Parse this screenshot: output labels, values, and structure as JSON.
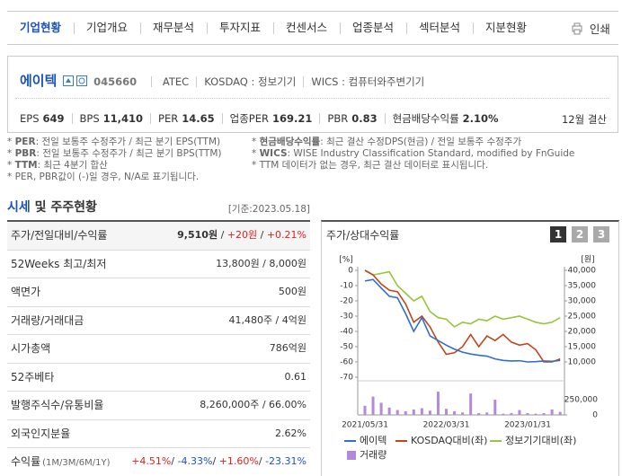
{
  "tabs": [
    "기업현황",
    "기업개요",
    "재무분석",
    "투자지표",
    "컨센서스",
    "업종분석",
    "섹터분석",
    "지분현황"
  ],
  "print": "인쇄",
  "company": {
    "name": "에이텍",
    "code": "045660",
    "eng": "ATEC",
    "market": "KOSDAQ : 정보기기",
    "wics": "WICS : 컴퓨터와주변기기",
    "metrics": [
      {
        "label": "EPS",
        "value": "649"
      },
      {
        "label": "BPS",
        "value": "11,410"
      },
      {
        "label": "PER",
        "value": "14.65"
      },
      {
        "label": "업종PER",
        "value": "169.21"
      },
      {
        "label": "PBR",
        "value": "0.83"
      },
      {
        "label": "현금배당수익률",
        "value": "2.10%"
      }
    ],
    "settle": "12월 결산"
  },
  "notes_left": [
    [
      {
        "t": "* "
      },
      {
        "t": "PER",
        "b": true
      },
      {
        "t": ": 전일 보통주 수정주가 / 최근 분기 EPS(TTM)"
      }
    ],
    [
      {
        "t": "* "
      },
      {
        "t": "PBR",
        "b": true
      },
      {
        "t": ": 전일 보통주 수정주가 / 최근 분기 BPS(TTM)"
      }
    ],
    [
      {
        "t": "* "
      },
      {
        "t": "TTM",
        "b": true
      },
      {
        "t": ": 최근 4분기 합산"
      }
    ],
    [
      {
        "t": "* PER, PBR값이 (-)일 경우, N/A로 표기됩니다."
      }
    ]
  ],
  "notes_right": [
    [
      {
        "t": "* "
      },
      {
        "t": "현금배당수익률",
        "b": true
      },
      {
        "t": ": 최근 결산 수정DPS(현금) / 전일 보통주 수정주가"
      }
    ],
    [
      {
        "t": "* "
      },
      {
        "t": "WICS",
        "b": true
      },
      {
        "t": ": WISE Industry Classification Standard, modified by FnGuide"
      }
    ],
    [
      {
        "t": "* TTM 데이터가 없는 경우, 최근 결산 데이터로 표시됩니다."
      }
    ]
  ],
  "section": {
    "title_a": "시세",
    "title_b": " 및 주주현황",
    "date": "[기준:2023.05.18]"
  },
  "table": {
    "rows": [
      {
        "label": "주가/전일대비/수익률",
        "value": [
          {
            "t": "9,510원",
            "b": true
          },
          {
            "t": " / "
          },
          {
            "t": "+20원",
            "color": "#e02020"
          },
          {
            "t": " / "
          },
          {
            "t": "+0.21%",
            "color": "#e02020"
          }
        ]
      },
      {
        "label": "52Weeks 최고/최저",
        "value": [
          {
            "t": "13,800원 / 8,000원"
          }
        ]
      },
      {
        "label": "액면가",
        "value": [
          {
            "t": "500원"
          }
        ]
      },
      {
        "label": "거래량/거래대금",
        "value": [
          {
            "t": "41,480주 / 4억원"
          }
        ]
      },
      {
        "label": "시가총액",
        "value": [
          {
            "t": "786억원"
          }
        ]
      },
      {
        "label": "52주베타",
        "value": [
          {
            "t": "0.61"
          }
        ]
      },
      {
        "label": "발행주식수/유통비율",
        "value": [
          {
            "t": "8,260,000주 / 66.00%"
          }
        ]
      },
      {
        "label": "외국인지분율",
        "value": [
          {
            "t": "2.62%"
          }
        ]
      },
      {
        "label": "수익률",
        "sub": "(1M/3M/6M/1Y)",
        "value": [
          {
            "t": "+4.51%",
            "color": "#e02020"
          },
          {
            "t": "/ "
          },
          {
            "t": "-4.33%",
            "color": "#2050d0"
          },
          {
            "t": "/ "
          },
          {
            "t": "+1.60%",
            "color": "#e02020"
          },
          {
            "t": "/ "
          },
          {
            "t": "-23.31%",
            "color": "#2050d0"
          }
        ]
      }
    ]
  },
  "chart_panel": {
    "buttons": [
      "1",
      "2",
      "3"
    ]
  },
  "chart_data": {
    "type": "line",
    "title": "주가/상대수익률",
    "categories": [
      "2021/05/31",
      null,
      null,
      null,
      null,
      null,
      null,
      null,
      null,
      null,
      "2022/03/31",
      null,
      null,
      null,
      null,
      null,
      null,
      null,
      null,
      null,
      "2023/01/31",
      null,
      null,
      null,
      null
    ],
    "ylabel": "[%]",
    "ylim": [
      -70,
      0
    ],
    "yticks": [
      0,
      -10,
      -20,
      -30,
      -40,
      -50,
      -60,
      -70
    ],
    "y2label": "[원]",
    "y2lim": [
      5000,
      40000
    ],
    "y2ticks": [
      {
        "value": 40000,
        "label": "40,000"
      },
      {
        "value": 35000,
        "label": "35,000"
      },
      {
        "value": 30000,
        "label": "30,000"
      },
      {
        "value": 25000,
        "label": "25,000"
      },
      {
        "value": 20000,
        "label": "20,000"
      },
      {
        "value": 15000,
        "label": "15,000"
      },
      {
        "value": 10000,
        "label": "10,000"
      }
    ],
    "y3lim": [
      0,
      500000
    ],
    "y3ticks": [
      {
        "value": 250000,
        "label": "250,000"
      },
      0
    ],
    "grid": false,
    "series": [
      {
        "name": "에이텍",
        "color": "#2f6fd0",
        "axis": "y2",
        "values": [
          36500,
          37000,
          34200,
          31500,
          31000,
          25800,
          20000,
          24500,
          18500,
          17000,
          15500,
          14200,
          13200,
          12600,
          12200,
          11900,
          11000,
          10500,
          10300,
          10400,
          10000,
          10100,
          10300,
          10200,
          10500
        ]
      },
      {
        "name": "KOSDAQ대비(좌)",
        "color": "#c0461b",
        "values": [
          0,
          -3,
          -9,
          -13,
          -14,
          -22,
          -34,
          -30,
          -37,
          -47,
          -55,
          -54,
          -50,
          -42,
          -50,
          -43,
          -46,
          -42,
          -47,
          -49,
          -48,
          -52,
          -60,
          -60,
          -58
        ]
      },
      {
        "name": "정보기기대비(좌)",
        "color": "#99c53a",
        "values": [
          0,
          -3,
          -2,
          -1,
          -10,
          -15,
          -20,
          -17,
          -27,
          -31,
          -32,
          -37,
          -34,
          -35,
          -32,
          -33,
          -30,
          -32,
          -31,
          -30,
          -32,
          -34,
          -35,
          -34,
          -31
        ]
      },
      {
        "name": "거래량",
        "color": "#b28ad8",
        "axis": "y3",
        "type": "bar",
        "values": [
          150000,
          300000,
          200000,
          120000,
          80000,
          60000,
          90000,
          110000,
          70000,
          380000,
          100000,
          60000,
          40000,
          350000,
          30000,
          40000,
          250000,
          20000,
          30000,
          80000,
          30000,
          20000,
          30000,
          90000,
          50000
        ]
      }
    ]
  }
}
